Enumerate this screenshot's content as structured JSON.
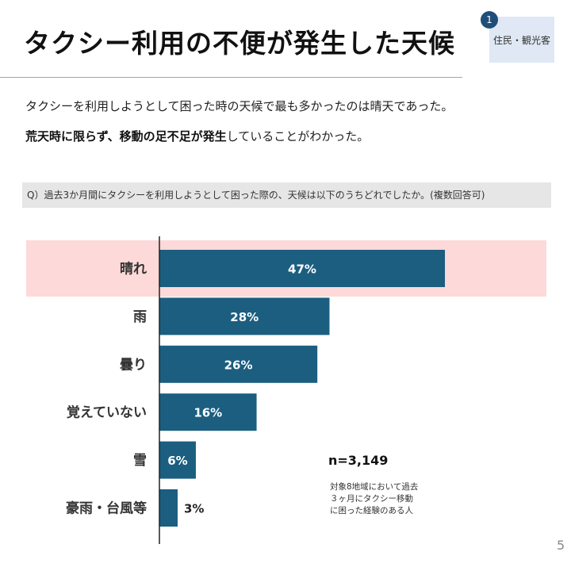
{
  "header": {
    "title": "タクシー利用の不便が発生した天候",
    "tag_number": "1",
    "tag_label": "住民・観光客"
  },
  "lead": {
    "line1": "タクシーを利用しようとして困った時の天候で最も多かったのは晴天であった。",
    "line2_bold1": "荒天時に限らず、移動の足不足が発生",
    "line2_rest": "していることがわかった。"
  },
  "question": "Q）過去3か月間にタクシーを利用しようとして困った際の、天候は以下のうちどれでしたか。(複数回答可)",
  "chart_data": {
    "type": "bar",
    "orientation": "horizontal",
    "categories": [
      "晴れ",
      "雨",
      "曇り",
      "覚えていない",
      "雪",
      "豪雨・台風等"
    ],
    "values": [
      47,
      28,
      26,
      16,
      6,
      3
    ],
    "value_labels": [
      "47%",
      "28%",
      "26%",
      "16%",
      "6%",
      "3%"
    ],
    "unit": "%",
    "highlight_category": "晴れ",
    "bar_color": "#1b5e80",
    "highlight_color": "#fdd9d9",
    "grid": false
  },
  "sample": {
    "n": "n=3,149",
    "note_lines": [
      "対象8地域において過去",
      "３ヶ月にタクシー移動",
      "に困った経験のある人"
    ]
  },
  "page_number": "5"
}
